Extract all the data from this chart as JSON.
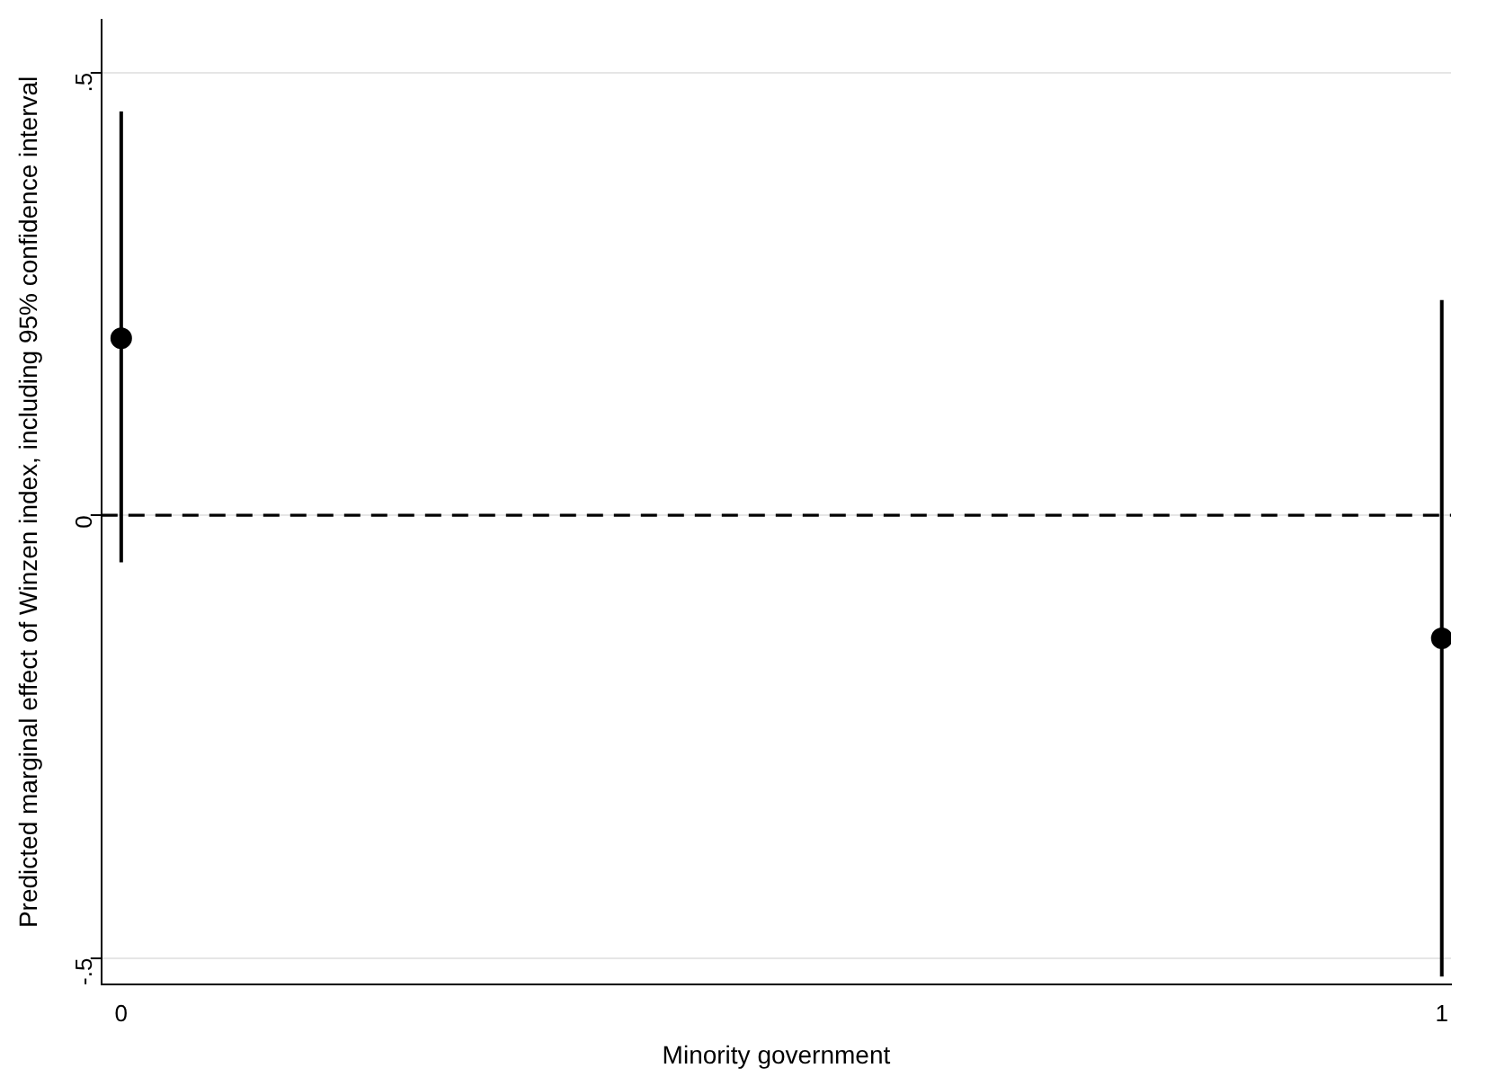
{
  "chart_data": {
    "type": "scatter",
    "xlabel": "Minority government",
    "ylabel": "Predicted marginal effect of Winzen index, including 95% confidence interval",
    "x": [
      0,
      1
    ],
    "values": [
      0.2,
      -0.139
    ],
    "color": "#000000",
    "marker": "circle",
    "errors": [
      [
        -0.053,
        0.456
      ],
      [
        -0.521,
        0.243
      ]
    ],
    "xlim": [
      -0.015,
      1.007
    ],
    "xticks": [
      0,
      1
    ],
    "ylim": [
      -0.53,
      0.56
    ],
    "yticks": [
      {
        "value": -0.5,
        "label": "-.5"
      },
      0,
      {
        "value": 0.5,
        "label": ".5"
      }
    ],
    "ref_lines": [
      {
        "axis": "y",
        "value": 0,
        "line_style": "dashed",
        "color": "#000000"
      }
    ],
    "grid": "y",
    "legend": false
  }
}
